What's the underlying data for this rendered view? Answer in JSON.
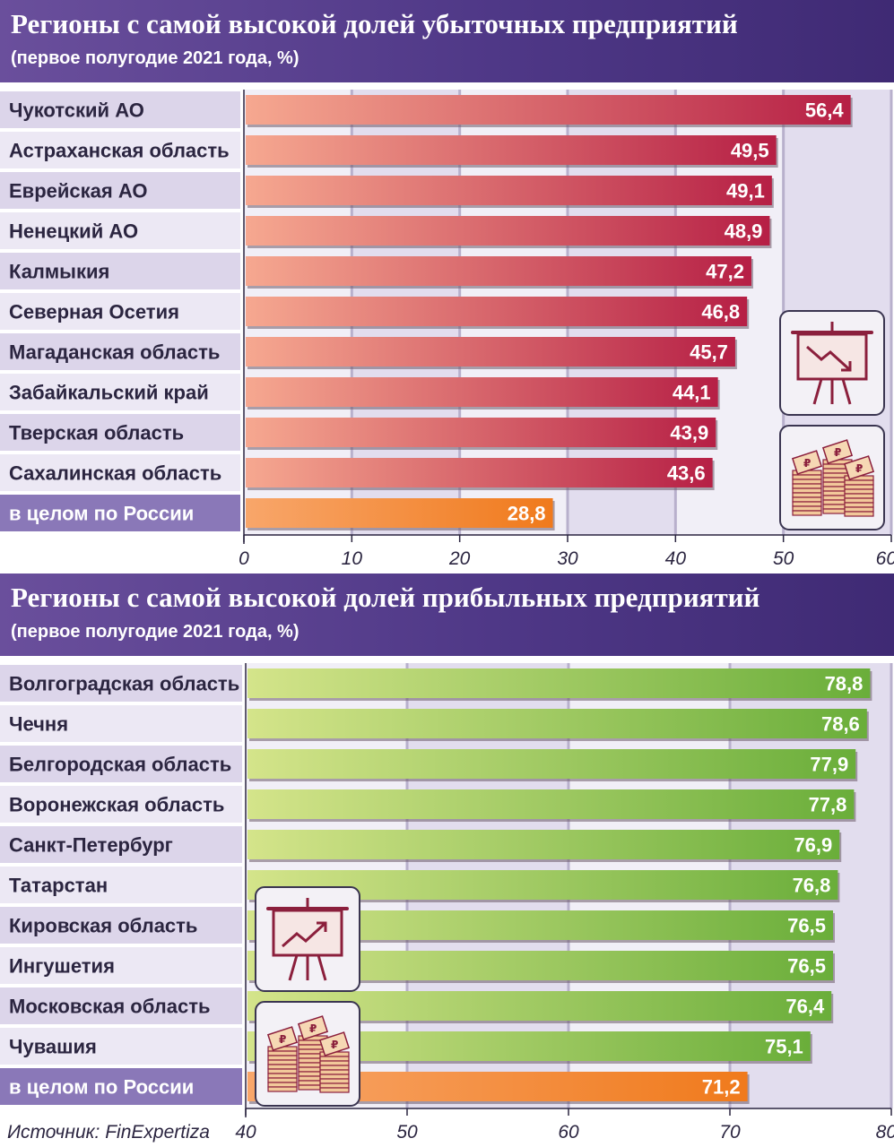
{
  "colors": {
    "header_bg": "#4f3887",
    "label_bg_light": "#ece8f4",
    "label_bg_dark": "#dcd5ea",
    "total_label_bg": "#8a78b8",
    "plot_bg_light": "#f1eff7",
    "plot_bg_dark": "#e2ddee",
    "loss_bar_start": "#f6a890",
    "loss_bar_end": "#b61f45",
    "profit_bar_start": "#d4e48a",
    "profit_bar_end": "#6aae3a",
    "total_bar_start": "#f8a66a",
    "total_bar_end": "#f07a1c",
    "icon_stroke": "#8b1f3c"
  },
  "icons": [
    "presentation-board-down-icon",
    "money-stack-icon",
    "presentation-board-up-icon",
    "money-stack-icon"
  ],
  "chart_data": [
    {
      "type": "bar",
      "orientation": "horizontal",
      "title": "Регионы с самой высокой долей убыточных предприятий",
      "subtitle": "(первое полугодие 2021 года, %)",
      "categories": [
        "Чукотский АО",
        "Астраханская область",
        "Еврейская АО",
        "Ненецкий АО",
        "Калмыкия",
        "Северная Осетия",
        "Магаданская область",
        "Забайкальский край",
        "Тверская область",
        "Сахалинская область",
        "в целом по России"
      ],
      "values": [
        56.4,
        49.5,
        49.1,
        48.9,
        47.2,
        46.8,
        45.7,
        44.1,
        43.9,
        43.6,
        28.8
      ],
      "value_labels": [
        "56,4",
        "49,5",
        "49,1",
        "48,9",
        "47,2",
        "46,8",
        "45,7",
        "44,1",
        "43,9",
        "43,6",
        "28,8"
      ],
      "highlight_last": true,
      "xlim": [
        0,
        60
      ],
      "xticks": [
        0,
        10,
        20,
        30,
        40,
        50,
        60
      ],
      "grid": true
    },
    {
      "type": "bar",
      "orientation": "horizontal",
      "title": "Регионы с самой высокой долей прибыльных предприятий",
      "subtitle": "(первое полугодие 2021 года, %)",
      "categories": [
        "Волгоградская область",
        "Чечня",
        "Белгородская область",
        "Воронежская область",
        "Санкт-Петербург",
        "Татарстан",
        "Кировская область",
        "Ингушетия",
        "Московская область",
        "Чувашия",
        "в целом по России"
      ],
      "values": [
        78.8,
        78.6,
        77.9,
        77.8,
        76.9,
        76.8,
        76.5,
        76.5,
        76.4,
        75.1,
        71.2
      ],
      "value_labels": [
        "78,8",
        "78,6",
        "77,9",
        "77,8",
        "76,9",
        "76,8",
        "76,5",
        "76,5",
        "76,4",
        "75,1",
        "71,2"
      ],
      "highlight_last": true,
      "xlim": [
        40,
        80
      ],
      "xticks": [
        40,
        50,
        60,
        70,
        80
      ],
      "grid": true
    }
  ],
  "source": "Источник: FinExpertiza"
}
